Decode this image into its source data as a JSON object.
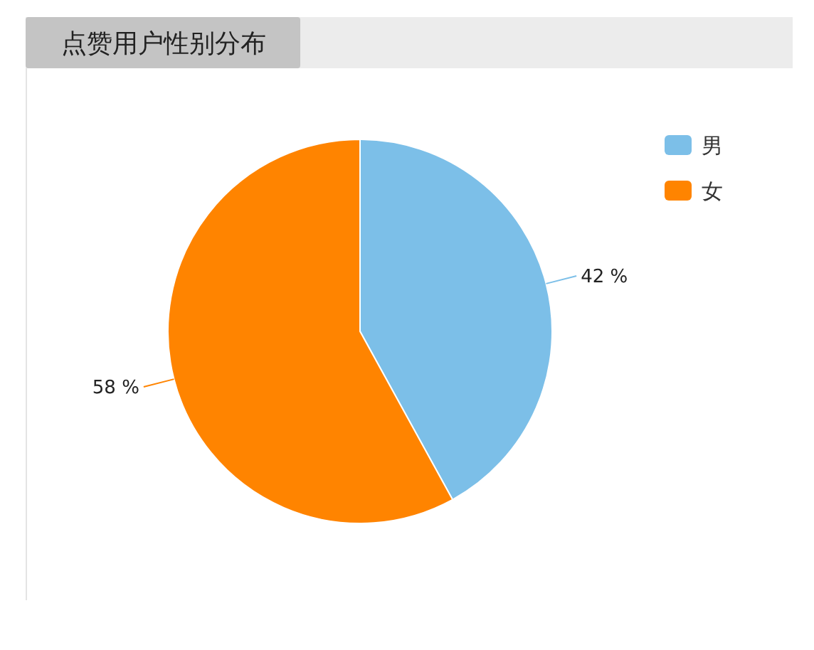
{
  "chart_data": {
    "type": "pie",
    "title": "点赞用户性别分布",
    "categories": [
      "男",
      "女"
    ],
    "values": [
      42,
      58
    ],
    "colors": [
      "#7cbfe8",
      "#ff8400"
    ],
    "value_labels": [
      "42 %",
      "58 %"
    ],
    "legend": "top right"
  }
}
